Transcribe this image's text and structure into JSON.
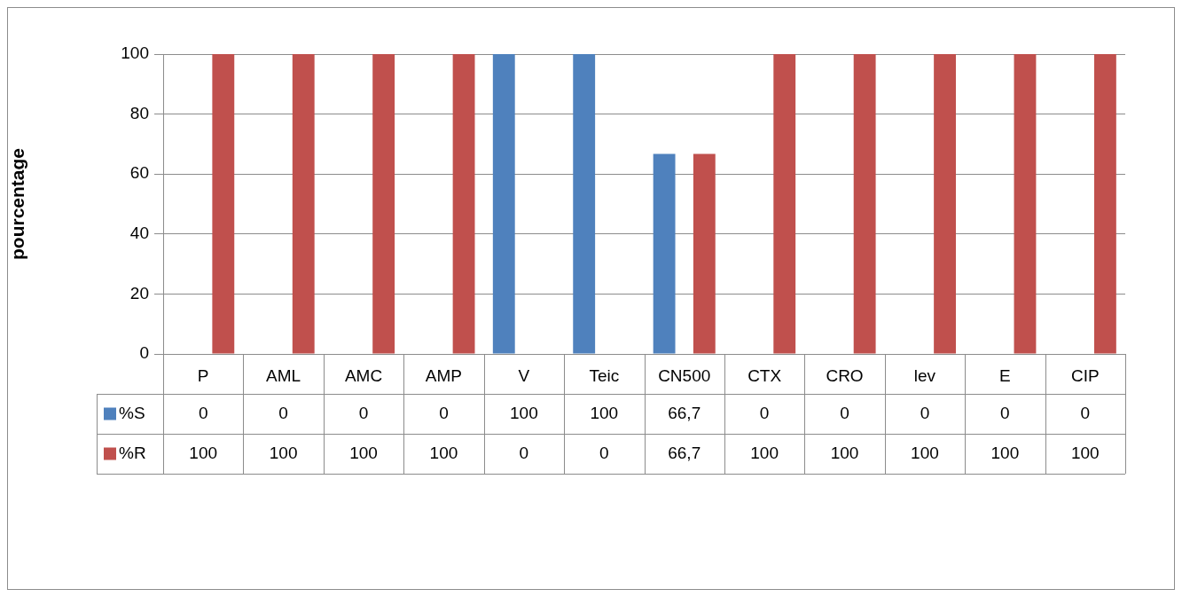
{
  "chart_data": {
    "type": "bar",
    "ylabel": "pourcentage",
    "categories": [
      "P",
      "AML",
      "AMC",
      "AMP",
      "V",
      "Teic",
      "CN500",
      "CTX",
      "CRO",
      "lev",
      "E",
      "CIP"
    ],
    "series": [
      {
        "name": "%S",
        "color": "#4f81bd",
        "values": [
          0,
          0,
          0,
          0,
          100,
          100,
          66.7,
          0,
          0,
          0,
          0,
          0
        ],
        "value_labels": [
          "0",
          "0",
          "0",
          "0",
          "100",
          "100",
          "66,7",
          "0",
          "0",
          "0",
          "0",
          "0"
        ]
      },
      {
        "name": "%R",
        "color": "#c0504d",
        "values": [
          100,
          100,
          100,
          100,
          0,
          0,
          66.7,
          100,
          100,
          100,
          100,
          100
        ],
        "value_labels": [
          "100",
          "100",
          "100",
          "100",
          "0",
          "0",
          "66,7",
          "100",
          "100",
          "100",
          "100",
          "100"
        ]
      }
    ],
    "ylim": [
      0,
      100
    ],
    "yticks": [
      0,
      20,
      40,
      60,
      80,
      100
    ],
    "grid": "y",
    "legend": "bottom left"
  }
}
